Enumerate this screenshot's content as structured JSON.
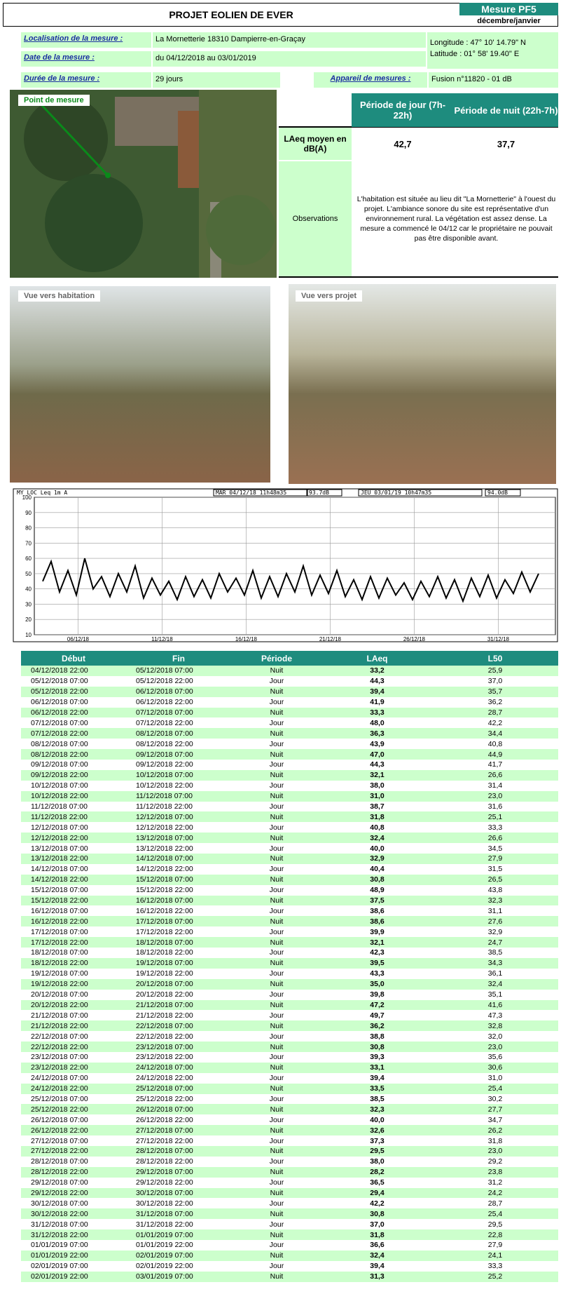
{
  "header": {
    "title": "PROJET EOLIEN DE EVER",
    "badge": "Mesure PF5",
    "period": "décembre/janvier"
  },
  "info": {
    "location_label": "Localisation de la mesure :",
    "location": "La Mornetterie 18310 Dampierre-en-Graçay",
    "date_label": "Date de la mesure :",
    "date": "du 04/12/2018 au 03/01/2019",
    "duration_label": "Durée de la mesure :",
    "duration": "29 jours",
    "device_label": "Appareil de mesures :",
    "device": "Fusion n°11820 - 01 dB",
    "longitude": "Longitude : 47° 10' 14.79\" N",
    "latitude": "Latitude : 01° 58' 19.40\" E"
  },
  "map": {
    "label": "Point de mesure"
  },
  "summary": {
    "day_header": "Période de jour (7h-22h)",
    "night_header": "Période de nuit (22h-7h)",
    "laeq_label": "LAeq moyen en dB(A)",
    "laeq_day": "42,7",
    "laeq_night": "37,7",
    "observations_label": "Observations",
    "observations": "L'habitation est située au lieu dit \"La Mornetterie\" à l'ouest du projet. L'ambiance sonore du site est représentative d'un environnement rural. La végétation est assez dense. La mesure a commencé le 04/12 car le propriétaire ne pouvait pas être disponible avant."
  },
  "photos": {
    "left": "Vue vers habitation",
    "right": "Vue vers projet"
  },
  "chart": {
    "type": "line",
    "header": [
      "MY_LOC   Leq 1m  A",
      "MAR 04/12/18 11h48m35",
      "93.7dB",
      "JEU 03/01/19 10h47m35",
      "94.0dB"
    ],
    "ylim": [
      10,
      100
    ],
    "yticks": [
      10,
      20,
      30,
      40,
      50,
      60,
      70,
      80,
      90,
      100
    ],
    "xlim": [
      0,
      31
    ],
    "xticks": [
      {
        "value": 2.6,
        "label": "06/12/18"
      },
      {
        "value": 7.6,
        "label": "11/12/18"
      },
      {
        "value": 12.6,
        "label": "16/12/18"
      },
      {
        "value": 17.6,
        "label": "21/12/18"
      },
      {
        "value": 22.6,
        "label": "26/12/18"
      },
      {
        "value": 27.6,
        "label": "31/12/18"
      }
    ],
    "color": "#000000",
    "x": [
      0.5,
      1,
      1.5,
      2,
      2.5,
      3,
      3.5,
      4,
      4.5,
      5,
      5.5,
      6,
      6.5,
      7,
      7.5,
      8,
      8.5,
      9,
      9.5,
      10,
      10.5,
      11,
      11.5,
      12,
      12.5,
      13,
      13.5,
      14,
      14.5,
      15,
      15.5,
      16,
      16.5,
      17,
      17.5,
      18,
      18.5,
      19,
      19.5,
      20,
      20.5,
      21,
      21.5,
      22,
      22.5,
      23,
      23.5,
      24,
      24.5,
      25,
      25.5,
      26,
      26.5,
      27,
      27.5,
      28,
      28.5,
      29,
      29.5,
      30
    ],
    "values": [
      45,
      58,
      38,
      52,
      36,
      60,
      40,
      48,
      35,
      50,
      38,
      55,
      34,
      47,
      36,
      45,
      33,
      48,
      35,
      46,
      34,
      50,
      38,
      47,
      36,
      52,
      34,
      48,
      35,
      50,
      38,
      55,
      36,
      49,
      37,
      52,
      35,
      46,
      33,
      48,
      34,
      47,
      36,
      44,
      33,
      45,
      35,
      48,
      34,
      46,
      32,
      47,
      35,
      49,
      34,
      46,
      37,
      51,
      38,
      50
    ]
  },
  "table": {
    "columns": [
      "Début",
      "Fin",
      "Période",
      "LAeq",
      "L50"
    ],
    "rows": [
      [
        "04/12/2018 22:00",
        "05/12/2018 07:00",
        "Nuit",
        "33,2",
        "25,9"
      ],
      [
        "05/12/2018 07:00",
        "05/12/2018 22:00",
        "Jour",
        "44,3",
        "37,0"
      ],
      [
        "05/12/2018 22:00",
        "06/12/2018 07:00",
        "Nuit",
        "39,4",
        "35,7"
      ],
      [
        "06/12/2018 07:00",
        "06/12/2018 22:00",
        "Jour",
        "41,9",
        "36,2"
      ],
      [
        "06/12/2018 22:00",
        "07/12/2018 07:00",
        "Nuit",
        "33,3",
        "28,7"
      ],
      [
        "07/12/2018 07:00",
        "07/12/2018 22:00",
        "Jour",
        "48,0",
        "42,2"
      ],
      [
        "07/12/2018 22:00",
        "08/12/2018 07:00",
        "Nuit",
        "36,3",
        "34,4"
      ],
      [
        "08/12/2018 07:00",
        "08/12/2018 22:00",
        "Jour",
        "43,9",
        "40,8"
      ],
      [
        "08/12/2018 22:00",
        "09/12/2018 07:00",
        "Nuit",
        "47,0",
        "44,9"
      ],
      [
        "09/12/2018 07:00",
        "09/12/2018 22:00",
        "Jour",
        "44,3",
        "41,7"
      ],
      [
        "09/12/2018 22:00",
        "10/12/2018 07:00",
        "Nuit",
        "32,1",
        "26,6"
      ],
      [
        "10/12/2018 07:00",
        "10/12/2018 22:00",
        "Jour",
        "38,0",
        "31,4"
      ],
      [
        "10/12/2018 22:00",
        "11/12/2018 07:00",
        "Nuit",
        "31,0",
        "23,0"
      ],
      [
        "11/12/2018 07:00",
        "11/12/2018 22:00",
        "Jour",
        "38,7",
        "31,6"
      ],
      [
        "11/12/2018 22:00",
        "12/12/2018 07:00",
        "Nuit",
        "31,8",
        "25,1"
      ],
      [
        "12/12/2018 07:00",
        "12/12/2018 22:00",
        "Jour",
        "40,8",
        "33,3"
      ],
      [
        "12/12/2018 22:00",
        "13/12/2018 07:00",
        "Nuit",
        "32,4",
        "26,6"
      ],
      [
        "13/12/2018 07:00",
        "13/12/2018 22:00",
        "Jour",
        "40,0",
        "34,5"
      ],
      [
        "13/12/2018 22:00",
        "14/12/2018 07:00",
        "Nuit",
        "32,9",
        "27,9"
      ],
      [
        "14/12/2018 07:00",
        "14/12/2018 22:00",
        "Jour",
        "40,4",
        "31,5"
      ],
      [
        "14/12/2018 22:00",
        "15/12/2018 07:00",
        "Nuit",
        "30,8",
        "26,5"
      ],
      [
        "15/12/2018 07:00",
        "15/12/2018 22:00",
        "Jour",
        "48,9",
        "43,8"
      ],
      [
        "15/12/2018 22:00",
        "16/12/2018 07:00",
        "Nuit",
        "37,5",
        "32,3"
      ],
      [
        "16/12/2018 07:00",
        "16/12/2018 22:00",
        "Jour",
        "38,6",
        "31,1"
      ],
      [
        "16/12/2018 22:00",
        "17/12/2018 07:00",
        "Nuit",
        "38,6",
        "27,6"
      ],
      [
        "17/12/2018 07:00",
        "17/12/2018 22:00",
        "Jour",
        "39,9",
        "32,9"
      ],
      [
        "17/12/2018 22:00",
        "18/12/2018 07:00",
        "Nuit",
        "32,1",
        "24,7"
      ],
      [
        "18/12/2018 07:00",
        "18/12/2018 22:00",
        "Jour",
        "42,3",
        "38,5"
      ],
      [
        "18/12/2018 22:00",
        "19/12/2018 07:00",
        "Nuit",
        "39,5",
        "34,3"
      ],
      [
        "19/12/2018 07:00",
        "19/12/2018 22:00",
        "Jour",
        "43,3",
        "36,1"
      ],
      [
        "19/12/2018 22:00",
        "20/12/2018 07:00",
        "Nuit",
        "35,0",
        "32,4"
      ],
      [
        "20/12/2018 07:00",
        "20/12/2018 22:00",
        "Jour",
        "39,8",
        "35,1"
      ],
      [
        "20/12/2018 22:00",
        "21/12/2018 07:00",
        "Nuit",
        "47,2",
        "41,6"
      ],
      [
        "21/12/2018 07:00",
        "21/12/2018 22:00",
        "Jour",
        "49,7",
        "47,3"
      ],
      [
        "21/12/2018 22:00",
        "22/12/2018 07:00",
        "Nuit",
        "36,2",
        "32,8"
      ],
      [
        "22/12/2018 07:00",
        "22/12/2018 22:00",
        "Jour",
        "38,8",
        "32,0"
      ],
      [
        "22/12/2018 22:00",
        "23/12/2018 07:00",
        "Nuit",
        "30,8",
        "23,0"
      ],
      [
        "23/12/2018 07:00",
        "23/12/2018 22:00",
        "Jour",
        "39,3",
        "35,6"
      ],
      [
        "23/12/2018 22:00",
        "24/12/2018 07:00",
        "Nuit",
        "33,1",
        "30,6"
      ],
      [
        "24/12/2018 07:00",
        "24/12/2018 22:00",
        "Jour",
        "39,4",
        "31,0"
      ],
      [
        "24/12/2018 22:00",
        "25/12/2018 07:00",
        "Nuit",
        "33,5",
        "25,4"
      ],
      [
        "25/12/2018 07:00",
        "25/12/2018 22:00",
        "Jour",
        "38,5",
        "30,2"
      ],
      [
        "25/12/2018 22:00",
        "26/12/2018 07:00",
        "Nuit",
        "32,3",
        "27,7"
      ],
      [
        "26/12/2018 07:00",
        "26/12/2018 22:00",
        "Jour",
        "40,0",
        "34,7"
      ],
      [
        "26/12/2018 22:00",
        "27/12/2018 07:00",
        "Nuit",
        "32,6",
        "26,2"
      ],
      [
        "27/12/2018 07:00",
        "27/12/2018 22:00",
        "Jour",
        "37,3",
        "31,8"
      ],
      [
        "27/12/2018 22:00",
        "28/12/2018 07:00",
        "Nuit",
        "29,5",
        "23,0"
      ],
      [
        "28/12/2018 07:00",
        "28/12/2018 22:00",
        "Jour",
        "38,0",
        "29,2"
      ],
      [
        "28/12/2018 22:00",
        "29/12/2018 07:00",
        "Nuit",
        "28,2",
        "23,8"
      ],
      [
        "29/12/2018 07:00",
        "29/12/2018 22:00",
        "Jour",
        "36,5",
        "31,2"
      ],
      [
        "29/12/2018 22:00",
        "30/12/2018 07:00",
        "Nuit",
        "29,4",
        "24,2"
      ],
      [
        "30/12/2018 07:00",
        "30/12/2018 22:00",
        "Jour",
        "42,2",
        "28,7"
      ],
      [
        "30/12/2018 22:00",
        "31/12/2018 07:00",
        "Nuit",
        "30,8",
        "25,4"
      ],
      [
        "31/12/2018 07:00",
        "31/12/2018 22:00",
        "Jour",
        "37,0",
        "29,5"
      ],
      [
        "31/12/2018 22:00",
        "01/01/2019 07:00",
        "Nuit",
        "31,8",
        "22,8"
      ],
      [
        "01/01/2019 07:00",
        "01/01/2019 22:00",
        "Jour",
        "36,6",
        "27,9"
      ],
      [
        "01/01/2019 22:00",
        "02/01/2019 07:00",
        "Nuit",
        "32,4",
        "24,1"
      ],
      [
        "02/01/2019 07:00",
        "02/01/2019 22:00",
        "Jour",
        "39,4",
        "33,3"
      ],
      [
        "02/01/2019 22:00",
        "03/01/2019 07:00",
        "Nuit",
        "31,3",
        "25,2"
      ]
    ]
  }
}
